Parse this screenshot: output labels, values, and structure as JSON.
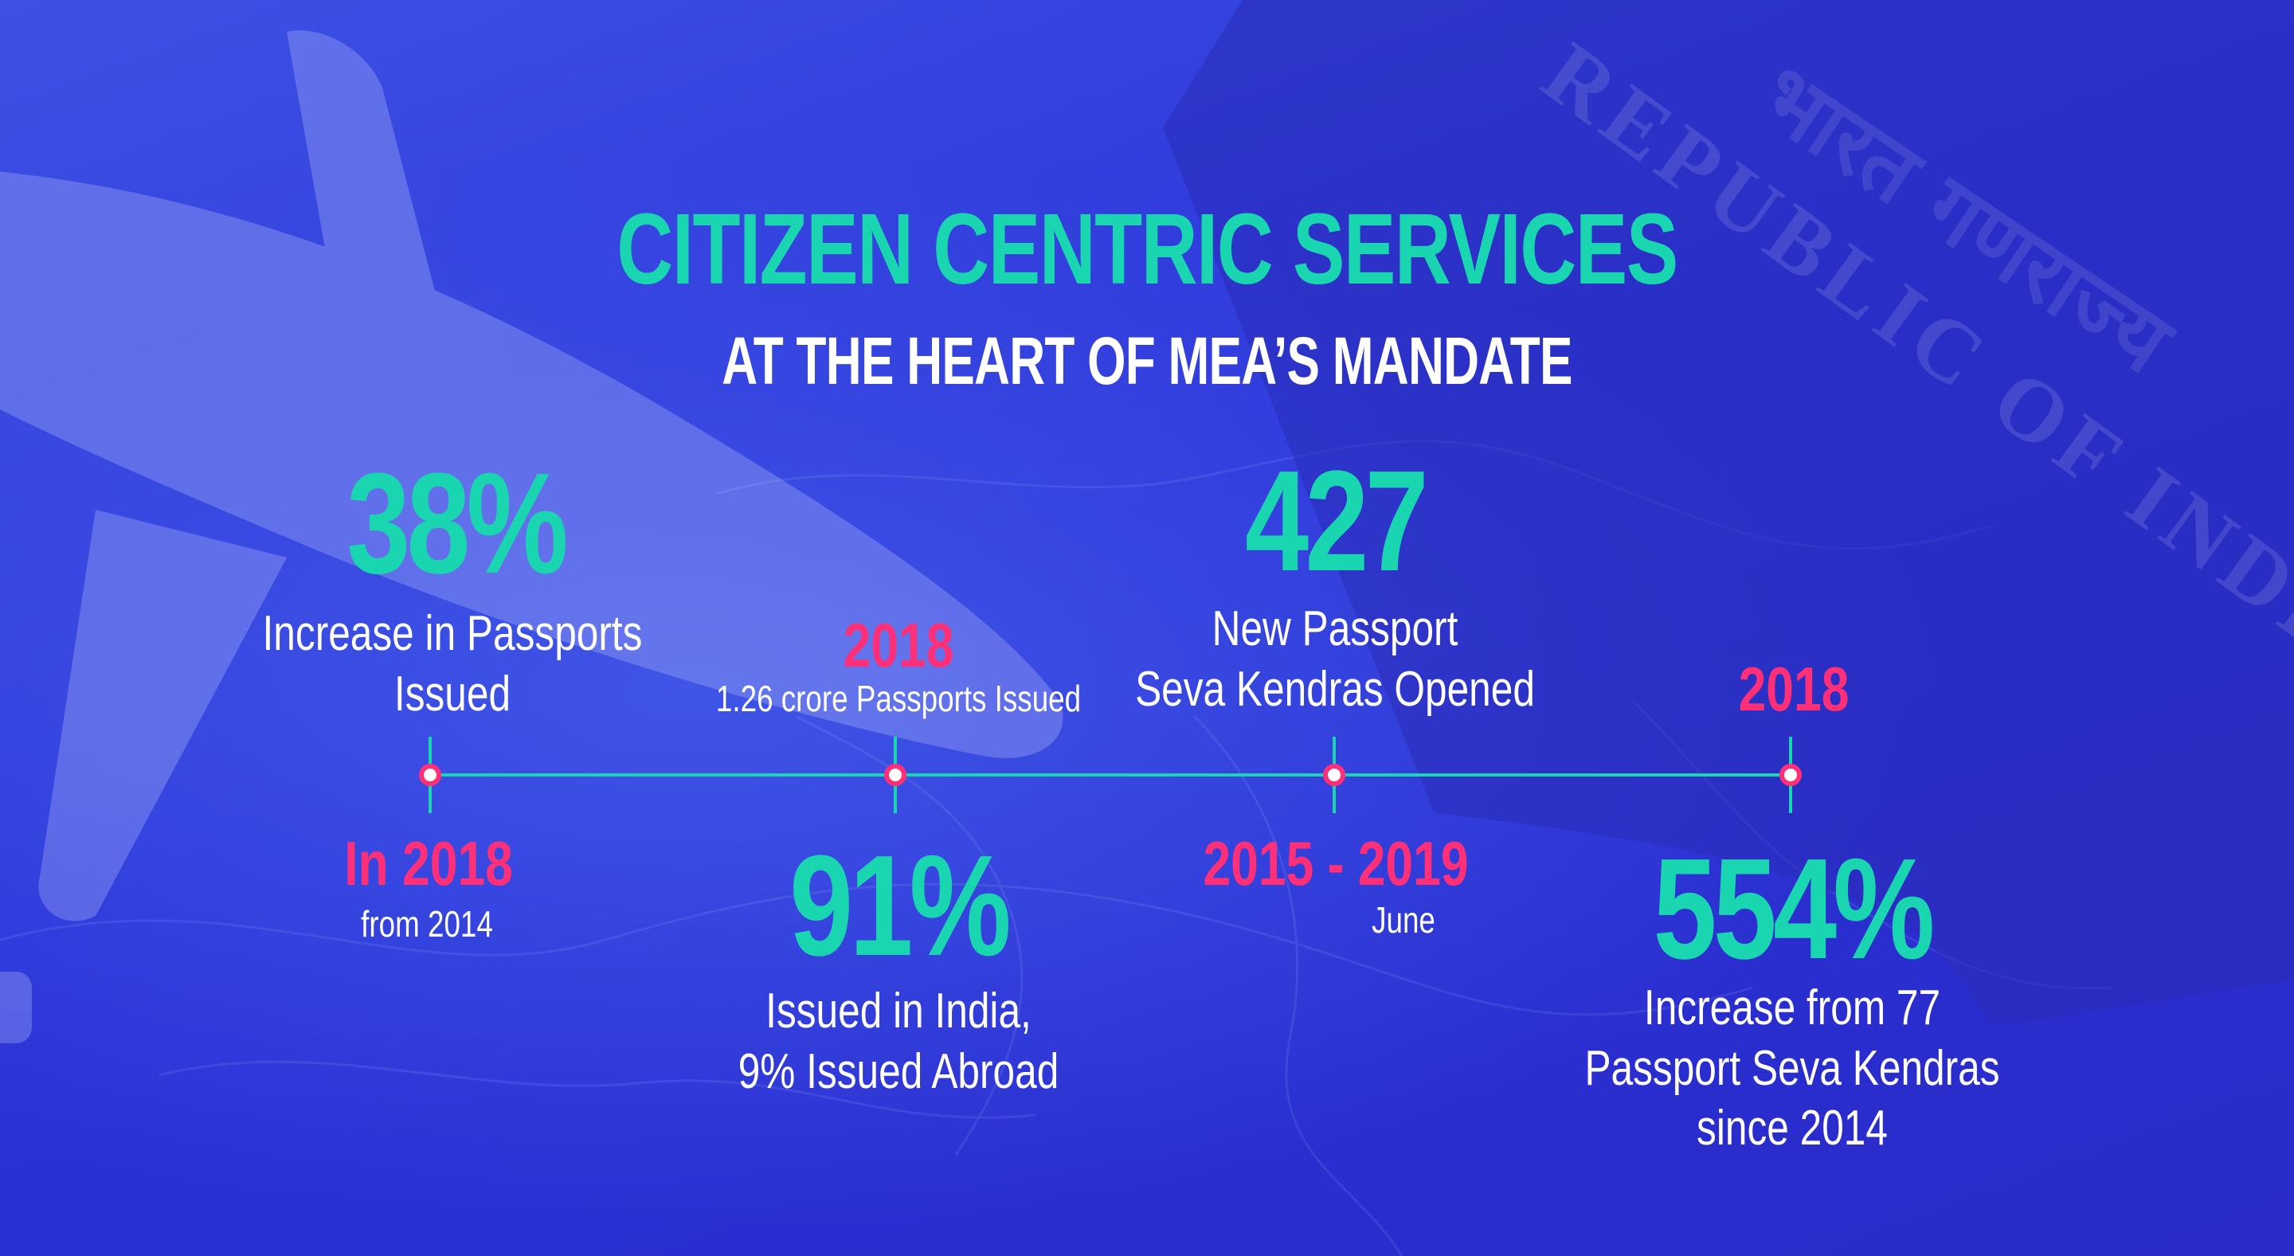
{
  "title": "CITIZEN CENTRIC SERVICES",
  "subtitle": "AT THE HEART OF MEA’S MANDATE",
  "stats": [
    {
      "value": "38%",
      "description_line1": "Increase in Passports",
      "description_line2": "Issued",
      "year": "In 2018",
      "year_note": "from 2014"
    },
    {
      "value": "91%",
      "description_line1": "Issued in India,",
      "description_line2": "9% Issued Abroad",
      "year": "2018",
      "year_note": "1.26 crore Passports Issued"
    },
    {
      "value": "427",
      "description_line1": "New Passport",
      "description_line2": "Seva Kendras Opened",
      "year": "2015 - 2019",
      "year_note": "June"
    },
    {
      "value": "554%",
      "description_line1": "Increase from 77",
      "description_line2": "Passport Seva Kendras",
      "description_line3": "since 2014",
      "year": "2018"
    }
  ],
  "background": {
    "passport_text": "REPUBLIC OF INDIA",
    "passport_text_hindi": "भारत गणराज्य"
  },
  "colors": {
    "accent_teal": "#19d6b1",
    "accent_pink": "#ff2f78",
    "background_blue": "#2d35d6",
    "text_white": "#ffffff"
  }
}
